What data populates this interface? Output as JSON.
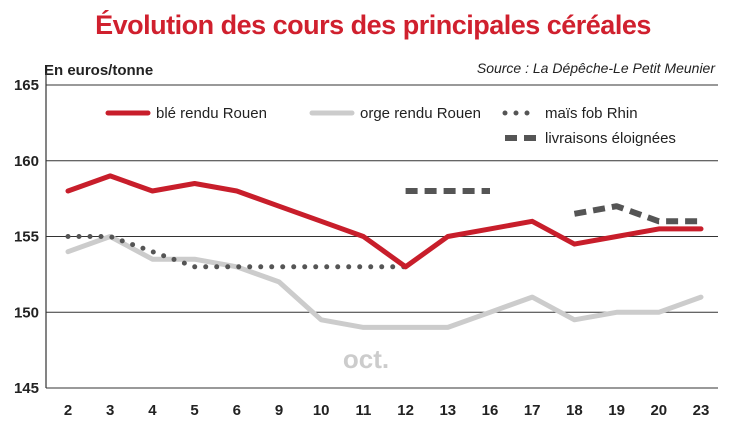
{
  "chart_data": {
    "type": "line",
    "title": "Évolution des cours des principales céréales",
    "ylabel": "En euros/tonne",
    "source": "Source : La Dépêche-Le Petit Meunier",
    "annotation": "oct.",
    "x": [
      "2",
      "3",
      "4",
      "5",
      "6",
      "9",
      "10",
      "11",
      "12",
      "13",
      "16",
      "17",
      "18",
      "19",
      "20",
      "23"
    ],
    "ylim": [
      145,
      165
    ],
    "yticks": [
      "145",
      "150",
      "155",
      "160",
      "165"
    ],
    "grid": true,
    "legend_position": "top",
    "series": [
      {
        "name": "blé rendu Rouen",
        "style": "solid",
        "color": "#c81e2b",
        "values": [
          158,
          159,
          158,
          158.5,
          158,
          157,
          156,
          155,
          153,
          155,
          155.5,
          156,
          154.5,
          155,
          155.5,
          155.5
        ]
      },
      {
        "name": "orge rendu Rouen",
        "style": "solid",
        "color": "#cccccc",
        "values": [
          154,
          155,
          153.5,
          153.5,
          153,
          152,
          149.5,
          149,
          149,
          149,
          150,
          151,
          149.5,
          150,
          150,
          151
        ]
      },
      {
        "name": "maïs fob Rhin",
        "style": "dotted",
        "color": "#555555",
        "values": [
          155,
          155,
          154,
          153,
          153,
          153,
          153,
          153,
          153,
          null,
          null,
          null,
          null,
          null,
          null,
          null
        ]
      },
      {
        "name": "livraisons éloignées",
        "style": "dashed",
        "color": "#555555",
        "values": [
          null,
          null,
          null,
          null,
          null,
          null,
          null,
          null,
          158,
          158,
          158,
          null,
          156.5,
          157,
          156,
          156
        ]
      }
    ]
  }
}
